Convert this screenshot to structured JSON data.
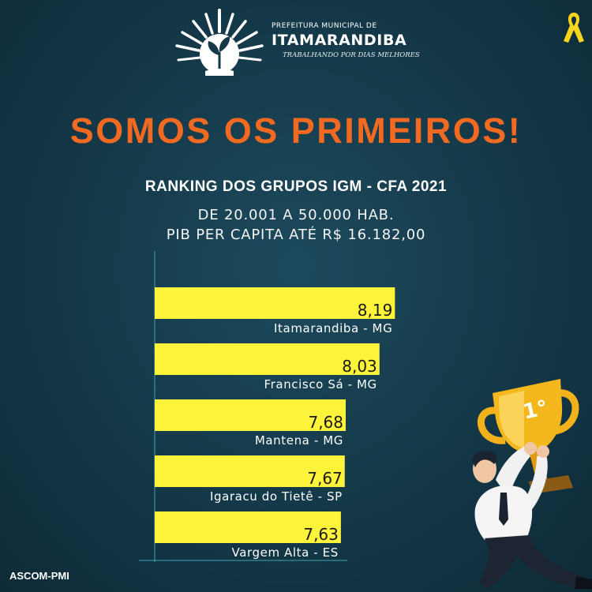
{
  "brand": {
    "top_line": "PREFEITURA MUNICIPAL DE",
    "name": "ITAMARANDIBA",
    "slogan": "TRABALHANDO POR DIAS MELHORES"
  },
  "headline": "SOMOS OS PRIMEIROS!",
  "subtitle": "RANKING DOS GRUPOS IGM - CFA 2021",
  "sublines": [
    "DE 20.001 A 50.000 HAB.",
    "PIB PER CAPITA ATÉ R$ 16.182,00"
  ],
  "credit": "ASCOM-PMI",
  "trophy": {
    "rank_label": "1°"
  },
  "colors": {
    "background": "#143848",
    "headline": "#f26a21",
    "bar": "#fdf33a",
    "bar_text": "#1a1a1a"
  },
  "chart_data": {
    "type": "bar",
    "orientation": "horizontal",
    "title": "RANKING DOS GRUPOS IGM - CFA 2021",
    "categories": [
      "Itamarandiba - MG",
      "Francisco Sá - MG",
      "Mantena - MG",
      "Igaracu do Tietê - SP",
      "Vargem Alta - ES"
    ],
    "values": [
      8.19,
      8.03,
      7.68,
      7.67,
      7.63
    ],
    "value_labels": [
      "8,19",
      "8,03",
      "7,68",
      "7,67",
      "7,63"
    ],
    "xlim": [
      5.7,
      8.4
    ],
    "grid": false,
    "legend": "none"
  }
}
